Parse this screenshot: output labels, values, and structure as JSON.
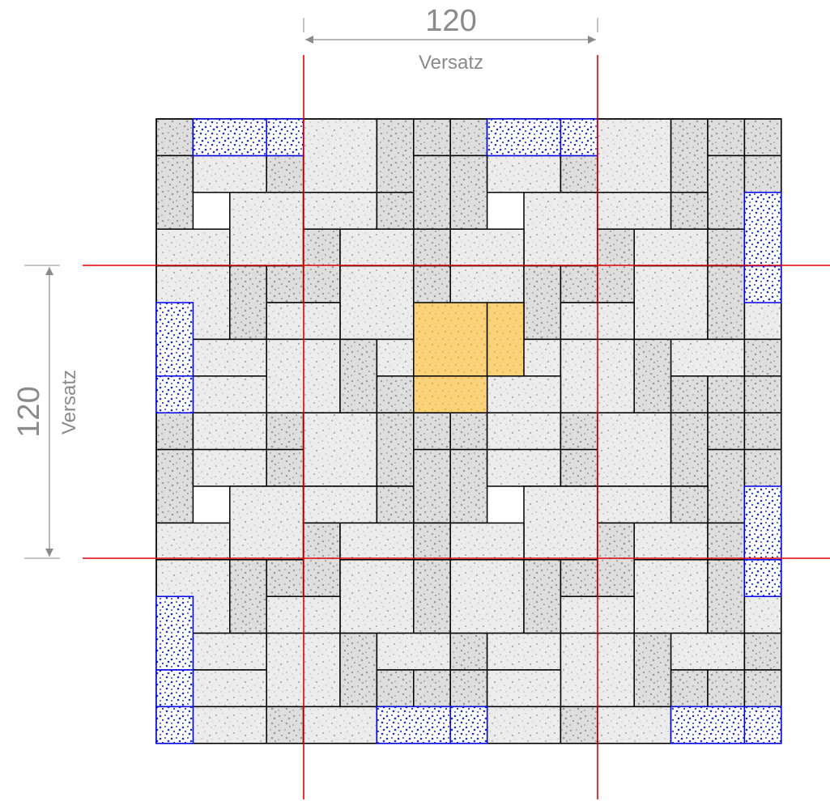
{
  "dimension_top": {
    "value": "120",
    "label": "Versatz"
  },
  "dimension_left": {
    "value": "120",
    "label": "Versatz"
  },
  "colors": {
    "tile_fill": "#e9e9e9",
    "tile_dots": "#b9b9b9",
    "tile_dots_dark": "#9a9a9a",
    "tile_outline": "#000000",
    "cut_tile_outline": "#0000ee",
    "cut_tile_dots": "#1a2fd0",
    "highlight_fill": "#f9d27a",
    "highlight_dots": "#e8b445",
    "repeat_line": "#e00000",
    "dimension": "#8a8a8a"
  }
}
